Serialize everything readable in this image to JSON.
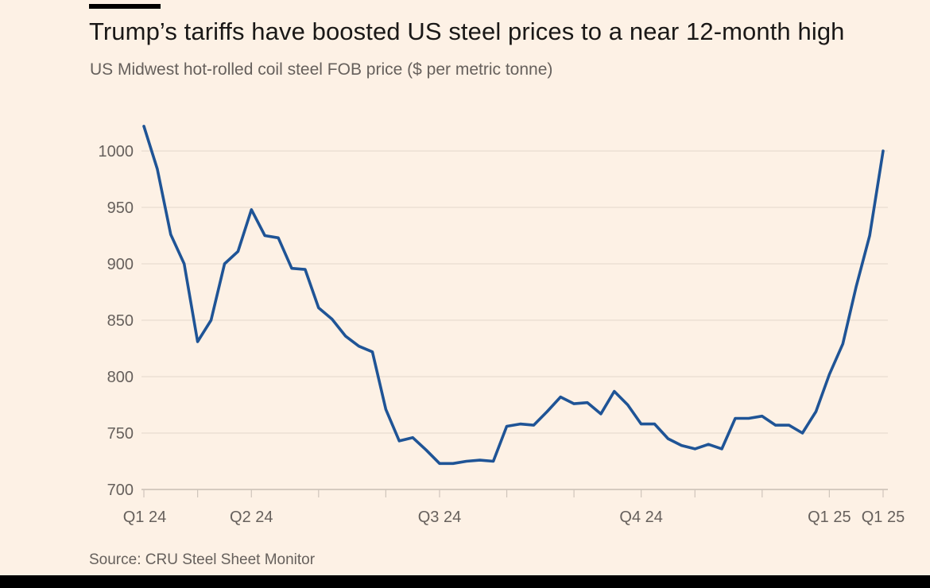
{
  "title": "Trump’s tariffs have boosted US steel prices to a near 12-month high",
  "subtitle": "US Midwest hot-rolled coil steel FOB price ($ per metric tonne)",
  "source": "Source: CRU Steel Sheet Monitor",
  "colors": {
    "background": "#fdf1e5",
    "line": "#1f5496",
    "grid": "#e8dcd0",
    "text": "#66605c"
  },
  "chart_data": {
    "type": "line",
    "title": "Trump’s tariffs have boosted US steel prices to a near 12-month high",
    "xlabel": "",
    "ylabel": "US Midwest hot-rolled coil steel FOB price ($ per metric tonne)",
    "ylim": [
      700,
      1030
    ],
    "yticks": [
      700,
      750,
      800,
      850,
      900,
      950,
      1000
    ],
    "grid": true,
    "x_tick_labels": [
      {
        "label": "Q1 24",
        "index": 0
      },
      {
        "label": "Q2 24",
        "index": 8
      },
      {
        "label": "Q3 24",
        "index": 22
      },
      {
        "label": "Q4 24",
        "index": 37
      },
      {
        "label": "Q1 25",
        "index": 51
      },
      {
        "label": "Q1 25",
        "index": 59
      }
    ],
    "series": [
      {
        "name": "US Midwest HRC steel FOB price",
        "values": [
          1022,
          984,
          926,
          900,
          831,
          850,
          900,
          911,
          948,
          925,
          923,
          896,
          895,
          861,
          851,
          836,
          827,
          822,
          771,
          743,
          746,
          735,
          723,
          723,
          725,
          726,
          725,
          756,
          758,
          757,
          769,
          782,
          776,
          777,
          767,
          787,
          775,
          758,
          758,
          745,
          739,
          736,
          740,
          736,
          763,
          763,
          765,
          757,
          757,
          750,
          769,
          802,
          829,
          880,
          925,
          1000
        ]
      }
    ]
  }
}
